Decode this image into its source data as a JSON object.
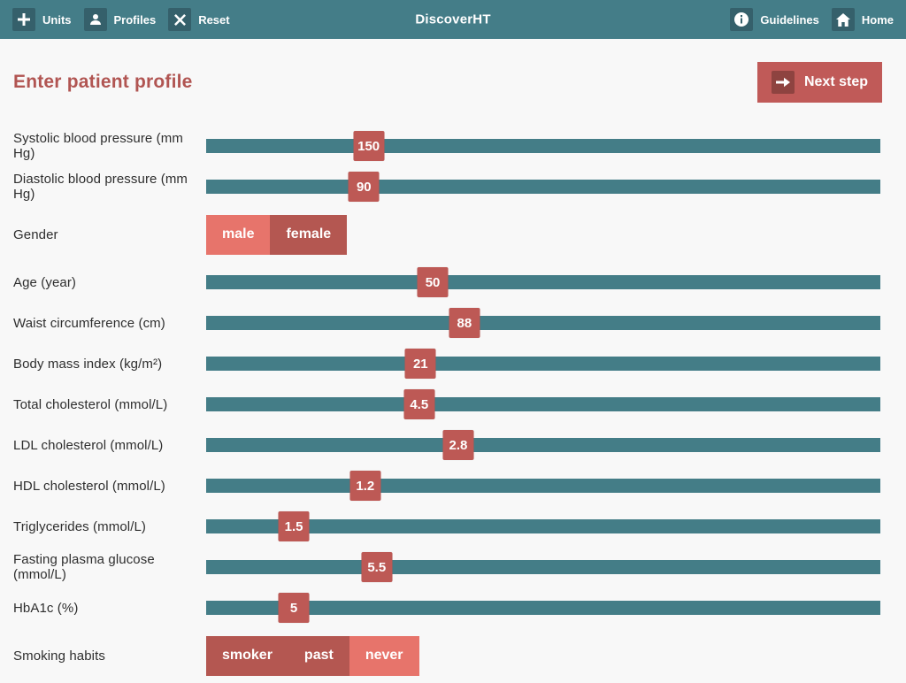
{
  "app": {
    "title": "DiscoverHT"
  },
  "navbar": {
    "left": [
      {
        "label": "Units",
        "icon": "plus-icon"
      },
      {
        "label": "Profiles",
        "icon": "person-icon"
      },
      {
        "label": "Reset",
        "icon": "x-icon"
      }
    ],
    "right": [
      {
        "label": "Guidelines",
        "icon": "info-icon"
      },
      {
        "label": "Home",
        "icon": "home-icon"
      }
    ]
  },
  "page": {
    "heading": "Enter patient profile",
    "next_step_label": "Next step"
  },
  "form": {
    "rows": [
      {
        "type": "slider",
        "label": "Systolic blood pressure (mm Hg)",
        "value": "150",
        "pct": 24.1
      },
      {
        "type": "slider",
        "label": "Diastolic blood pressure (mm Hg)",
        "value": "90",
        "pct": 23.4
      },
      {
        "type": "toggle",
        "label": "Gender",
        "options": [
          {
            "label": "male",
            "selected": true
          },
          {
            "label": "female",
            "selected": false
          }
        ]
      },
      {
        "type": "slider",
        "label": "Age (year)",
        "value": "50",
        "pct": 33.6
      },
      {
        "type": "slider",
        "label": "Waist circumference (cm)",
        "value": "88",
        "pct": 38.3
      },
      {
        "type": "slider",
        "label": "Body mass index (kg/m²)",
        "value": "21",
        "pct": 31.8
      },
      {
        "type": "slider",
        "label": "Total cholesterol (mmol/L)",
        "value": "4.5",
        "pct": 31.6
      },
      {
        "type": "slider",
        "label": "LDL cholesterol (mmol/L)",
        "value": "2.8",
        "pct": 37.4
      },
      {
        "type": "slider",
        "label": "HDL cholesterol (mmol/L)",
        "value": "1.2",
        "pct": 23.6
      },
      {
        "type": "slider",
        "label": "Triglycerides (mmol/L)",
        "value": "1.5",
        "pct": 13.0
      },
      {
        "type": "slider",
        "label": "Fasting plasma glucose (mmol/L)",
        "value": "5.5",
        "pct": 25.3
      },
      {
        "type": "slider",
        "label": "HbA1c (%)",
        "value": "5",
        "pct": 13.0
      },
      {
        "type": "toggle",
        "label": "Smoking habits",
        "options": [
          {
            "label": "smoker",
            "selected": false
          },
          {
            "label": "past",
            "selected": false
          },
          {
            "label": "never",
            "selected": true
          }
        ]
      }
    ]
  },
  "colors": {
    "navbar_teal": "#447d88",
    "icon_box_teal": "#35606b",
    "track_teal": "#447d87",
    "heading_red": "#b15552",
    "button_red": "#c05a58",
    "button_icon_red": "#8e4340",
    "handle_red": "#bd5955",
    "toggle_selected_salmon": "#e7746b",
    "toggle_unselected_red": "#b45751",
    "background": "#f8f8f8"
  }
}
